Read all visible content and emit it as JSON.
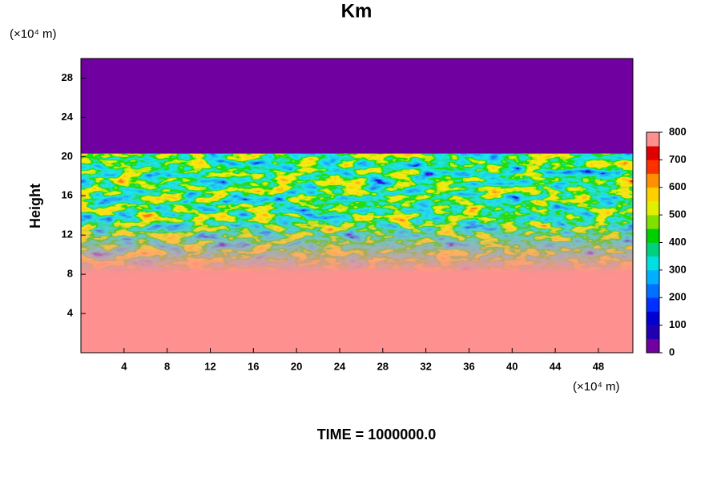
{
  "chart_data": {
    "type": "contour",
    "title": "Km",
    "y_label": "Height",
    "x_unit": "(×10⁴ m)",
    "y_unit": "(×10⁴ m)",
    "footer": "TIME = 1000000.0",
    "xlim": [
      0,
      51.2
    ],
    "xticks": [
      4,
      8,
      12,
      16,
      20,
      24,
      28,
      32,
      36,
      40,
      44,
      48
    ],
    "ylim": [
      0,
      30
    ],
    "yticks": [
      4,
      8,
      12,
      16,
      20,
      24,
      28
    ],
    "colorbar": {
      "lim": [
        0,
        800
      ],
      "ticks": [
        0,
        100,
        200,
        300,
        400,
        500,
        600,
        700,
        800
      ],
      "colors": [
        "#7000a0",
        "#2000b0",
        "#0000d0",
        "#0030ff",
        "#0070ff",
        "#00b0ff",
        "#00e0e0",
        "#00d080",
        "#00d000",
        "#80e000",
        "#e0f000",
        "#ffd000",
        "#ff9000",
        "#ff3000",
        "#e00000",
        "#ff9090"
      ]
    }
  }
}
